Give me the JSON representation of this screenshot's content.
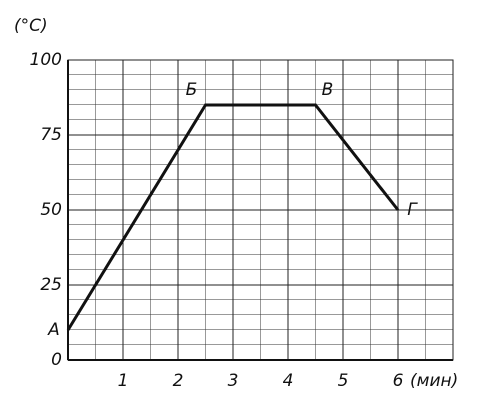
{
  "chart_data": {
    "type": "line",
    "y_label": "(°C)",
    "x_label": "(мин)",
    "x": [
      0,
      2.5,
      4.5,
      6
    ],
    "values": [
      10,
      85,
      85,
      50
    ],
    "point_labels": [
      "А",
      "Б",
      "В",
      "Г"
    ],
    "color": "#111111",
    "xlim": [
      0,
      7
    ],
    "ylim": [
      0,
      100
    ],
    "xticks": [
      1,
      2,
      3,
      4,
      5,
      6
    ],
    "yticks": [
      0,
      25,
      50,
      75,
      100
    ],
    "grid": true
  }
}
